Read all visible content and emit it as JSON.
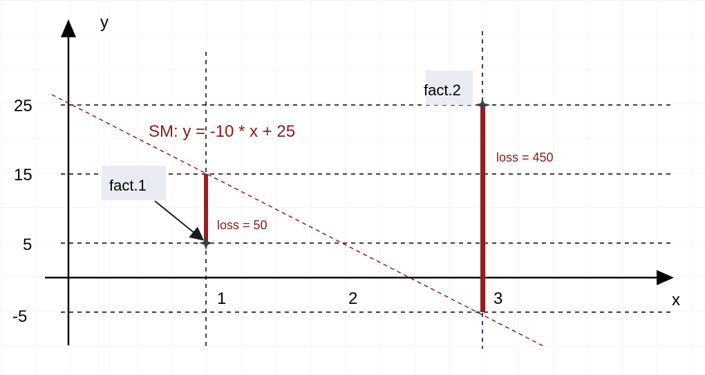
{
  "colors": {
    "background": "#ffffff",
    "grid": "#ececec",
    "axis": "#000000",
    "accent": "#8b1a1a",
    "label_box": "#e9edf3"
  },
  "axes": {
    "x_label": "x",
    "y_label": "y"
  },
  "x_ticks": [
    "1",
    "2",
    "3"
  ],
  "y_ticks": [
    "25",
    "15",
    "5",
    "-5"
  ],
  "model": {
    "label": "SM: y = -10 * x + 25",
    "slope": -10,
    "intercept": 25
  },
  "facts": [
    {
      "label": "fact.1",
      "x": 1,
      "y": 5,
      "loss_label": "loss = 50"
    },
    {
      "label": "fact.2",
      "x": 3,
      "y": 25,
      "loss_label": "loss = 450"
    }
  ]
}
